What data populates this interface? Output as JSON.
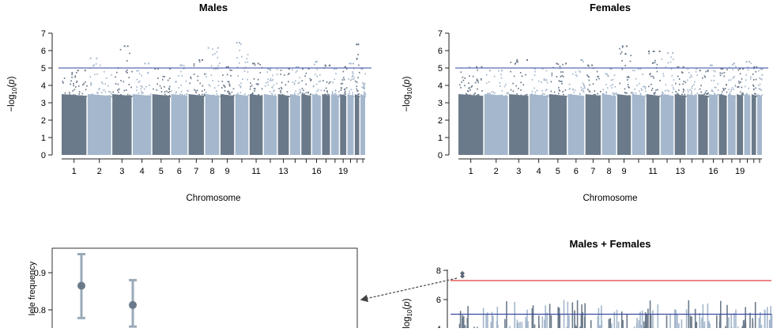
{
  "chart_data": [
    {
      "type": "scatter",
      "subtype": "manhattan",
      "title": "Males",
      "xlabel": "Chromosome",
      "ylabel": "−log10(p)",
      "ylim": [
        0,
        7
      ],
      "y_ticks": [
        0,
        1,
        2,
        3,
        4,
        5,
        6,
        7
      ],
      "chromosome_labels": [
        "1",
        "2",
        "3",
        "4",
        "5",
        "6",
        "7",
        "8",
        "9",
        "11",
        "13",
        "16",
        "19"
      ],
      "threshold_line": {
        "value": 5,
        "color": "#5b6bb5"
      },
      "colors": [
        "#6b7a8a",
        "#a4b7cc"
      ],
      "chromosome_peaks": [
        4.9,
        5.6,
        6.3,
        5.3,
        5.0,
        5.2,
        5.5,
        6.2,
        5.1,
        6.5,
        5.3,
        5.0,
        5.0,
        5.1,
        5.0,
        5.4,
        5.2,
        5.0,
        5.1,
        5.3,
        6.4,
        5.0
      ]
    },
    {
      "type": "scatter",
      "subtype": "manhattan",
      "title": "Females",
      "xlabel": "Chromosome",
      "ylabel": "−log10(p)",
      "ylim": [
        0,
        7
      ],
      "y_ticks": [
        0,
        1,
        2,
        3,
        4,
        5,
        6,
        7
      ],
      "chromosome_labels": [
        "1",
        "2",
        "3",
        "4",
        "5",
        "6",
        "7",
        "8",
        "9",
        "11",
        "13",
        "16",
        "19"
      ],
      "threshold_line": {
        "value": 5,
        "color": "#5b6bb5"
      },
      "colors": [
        "#6b7a8a",
        "#a4b7cc"
      ],
      "chromosome_peaks": [
        5.1,
        4.9,
        5.5,
        5.0,
        5.3,
        5.5,
        5.2,
        5.0,
        6.3,
        5.0,
        6.0,
        5.9,
        5.1,
        5.0,
        4.9,
        5.2,
        5.0,
        5.3,
        5.0,
        5.4,
        5.1,
        5.0
      ]
    },
    {
      "type": "scatter",
      "title": "",
      "ylabel": "lele frequency",
      "y_ticks": [
        0.9,
        0.8
      ],
      "points": [
        {
          "y": 0.865,
          "lower": 0.778,
          "upper": 0.95
        },
        {
          "y": 0.813,
          "lower": 0.755,
          "upper": 0.88
        }
      ]
    },
    {
      "type": "scatter",
      "subtype": "manhattan",
      "title": "Males + Females",
      "ylabel": "−log10(p)",
      "y_ticks": [
        8,
        6,
        4
      ],
      "threshold_lines": [
        {
          "value": 7.3,
          "color": "#e05050"
        },
        {
          "value": 5,
          "color": "#3b4aa0"
        }
      ],
      "highlight_points": [
        7.6,
        7.8
      ]
    }
  ]
}
